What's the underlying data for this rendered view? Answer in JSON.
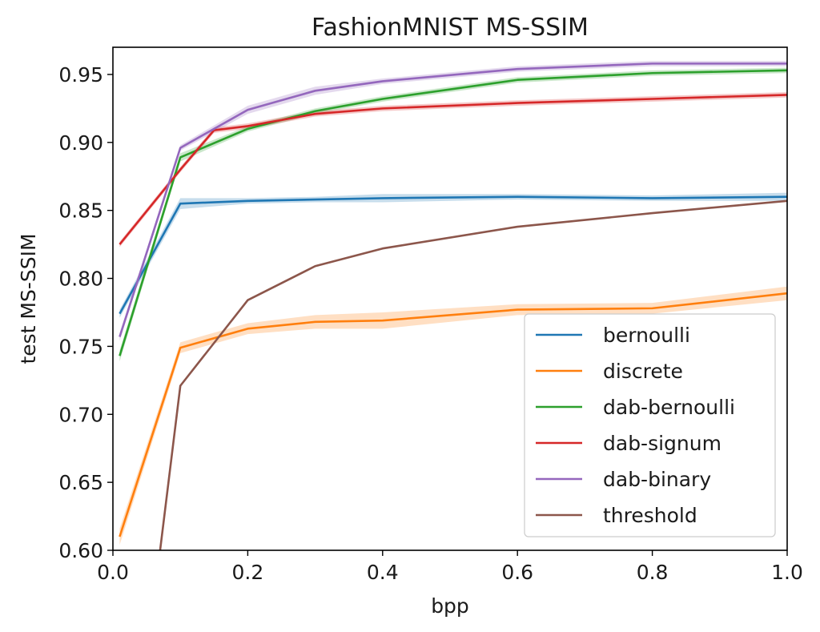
{
  "chart_data": {
    "type": "line",
    "title": "FashionMNIST MS-SSIM",
    "xlabel": "bpp",
    "ylabel": "test MS-SSIM",
    "xlim": [
      0.0,
      1.0
    ],
    "ylim": [
      0.6,
      0.97
    ],
    "xticks": [
      "0.0",
      "0.2",
      "0.4",
      "0.6",
      "0.8",
      "1.0"
    ],
    "yticks": [
      "0.60",
      "0.65",
      "0.70",
      "0.75",
      "0.80",
      "0.85",
      "0.90",
      "0.95"
    ],
    "grid": false,
    "legend_position": "lower-right",
    "series": [
      {
        "name": "bernoulli",
        "color": "#1f77b4",
        "x": [
          0.01,
          0.1,
          0.2,
          0.3,
          0.4,
          0.6,
          0.8,
          1.0
        ],
        "y": [
          0.774,
          0.855,
          0.857,
          0.858,
          0.859,
          0.86,
          0.859,
          0.86
        ],
        "band": [
          0.003,
          0.004,
          0.002,
          0.002,
          0.003,
          0.002,
          0.002,
          0.003
        ]
      },
      {
        "name": "discrete",
        "color": "#ff7f0e",
        "x": [
          0.01,
          0.1,
          0.2,
          0.3,
          0.4,
          0.6,
          0.8,
          1.0
        ],
        "y": [
          0.61,
          0.749,
          0.763,
          0.768,
          0.769,
          0.777,
          0.778,
          0.789
        ],
        "band": [
          0.006,
          0.004,
          0.004,
          0.005,
          0.006,
          0.004,
          0.004,
          0.005
        ]
      },
      {
        "name": "dab-bernoulli",
        "color": "#2ca02c",
        "x": [
          0.01,
          0.1,
          0.2,
          0.3,
          0.4,
          0.6,
          0.8,
          1.0
        ],
        "y": [
          0.743,
          0.889,
          0.91,
          0.923,
          0.932,
          0.946,
          0.951,
          0.953
        ],
        "band": [
          0.004,
          0.003,
          0.002,
          0.002,
          0.002,
          0.002,
          0.002,
          0.002
        ]
      },
      {
        "name": "dab-signum",
        "color": "#d62728",
        "x": [
          0.01,
          0.1,
          0.15,
          0.2,
          0.3,
          0.4,
          0.6,
          0.8,
          1.0
        ],
        "y": [
          0.825,
          0.88,
          0.909,
          0.912,
          0.921,
          0.925,
          0.929,
          0.932,
          0.935
        ],
        "band": [
          0.002,
          0.002,
          0.002,
          0.002,
          0.002,
          0.002,
          0.002,
          0.002,
          0.002
        ]
      },
      {
        "name": "dab-binary",
        "color": "#9467bd",
        "x": [
          0.01,
          0.1,
          0.2,
          0.3,
          0.4,
          0.6,
          0.8,
          1.0
        ],
        "y": [
          0.757,
          0.896,
          0.924,
          0.938,
          0.945,
          0.954,
          0.958,
          0.958
        ],
        "band": [
          0.003,
          0.002,
          0.003,
          0.003,
          0.002,
          0.002,
          0.002,
          0.002
        ]
      },
      {
        "name": "threshold",
        "color": "#8c564b",
        "x": [
          0.07,
          0.1,
          0.2,
          0.3,
          0.4,
          0.6,
          0.8,
          1.0
        ],
        "y": [
          0.6,
          0.721,
          0.784,
          0.809,
          0.822,
          0.838,
          0.848,
          0.857
        ],
        "band": [
          0,
          0,
          0,
          0,
          0,
          0,
          0,
          0
        ]
      }
    ]
  }
}
